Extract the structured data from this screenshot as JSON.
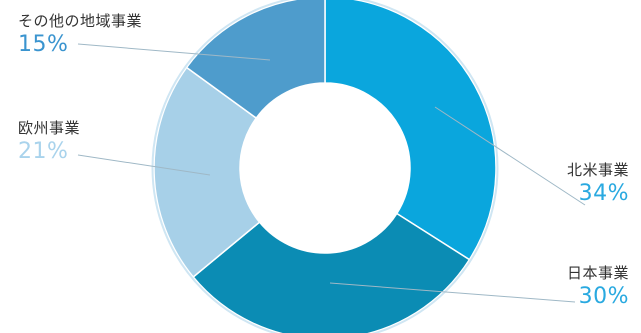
{
  "chart_data": {
    "type": "pie",
    "donut": true,
    "start_angle_deg": 0,
    "direction": "clockwise",
    "slices": [
      {
        "label": "北米事業",
        "value": 34,
        "display": "34%",
        "color": "#0AA6DD",
        "label_color": "#29A9E0"
      },
      {
        "label": "日本事業",
        "value": 30,
        "display": "30%",
        "color": "#0B8CB4",
        "label_color": "#29A9E0"
      },
      {
        "label": "欧州事業",
        "value": 21,
        "display": "21%",
        "color": "#A7D0E8",
        "label_color": "#A9D3EC"
      },
      {
        "label": "その他の地域事業",
        "value": 15,
        "display": "15%",
        "color": "#4E9CCC",
        "label_color": "#3A94CF"
      }
    ]
  }
}
